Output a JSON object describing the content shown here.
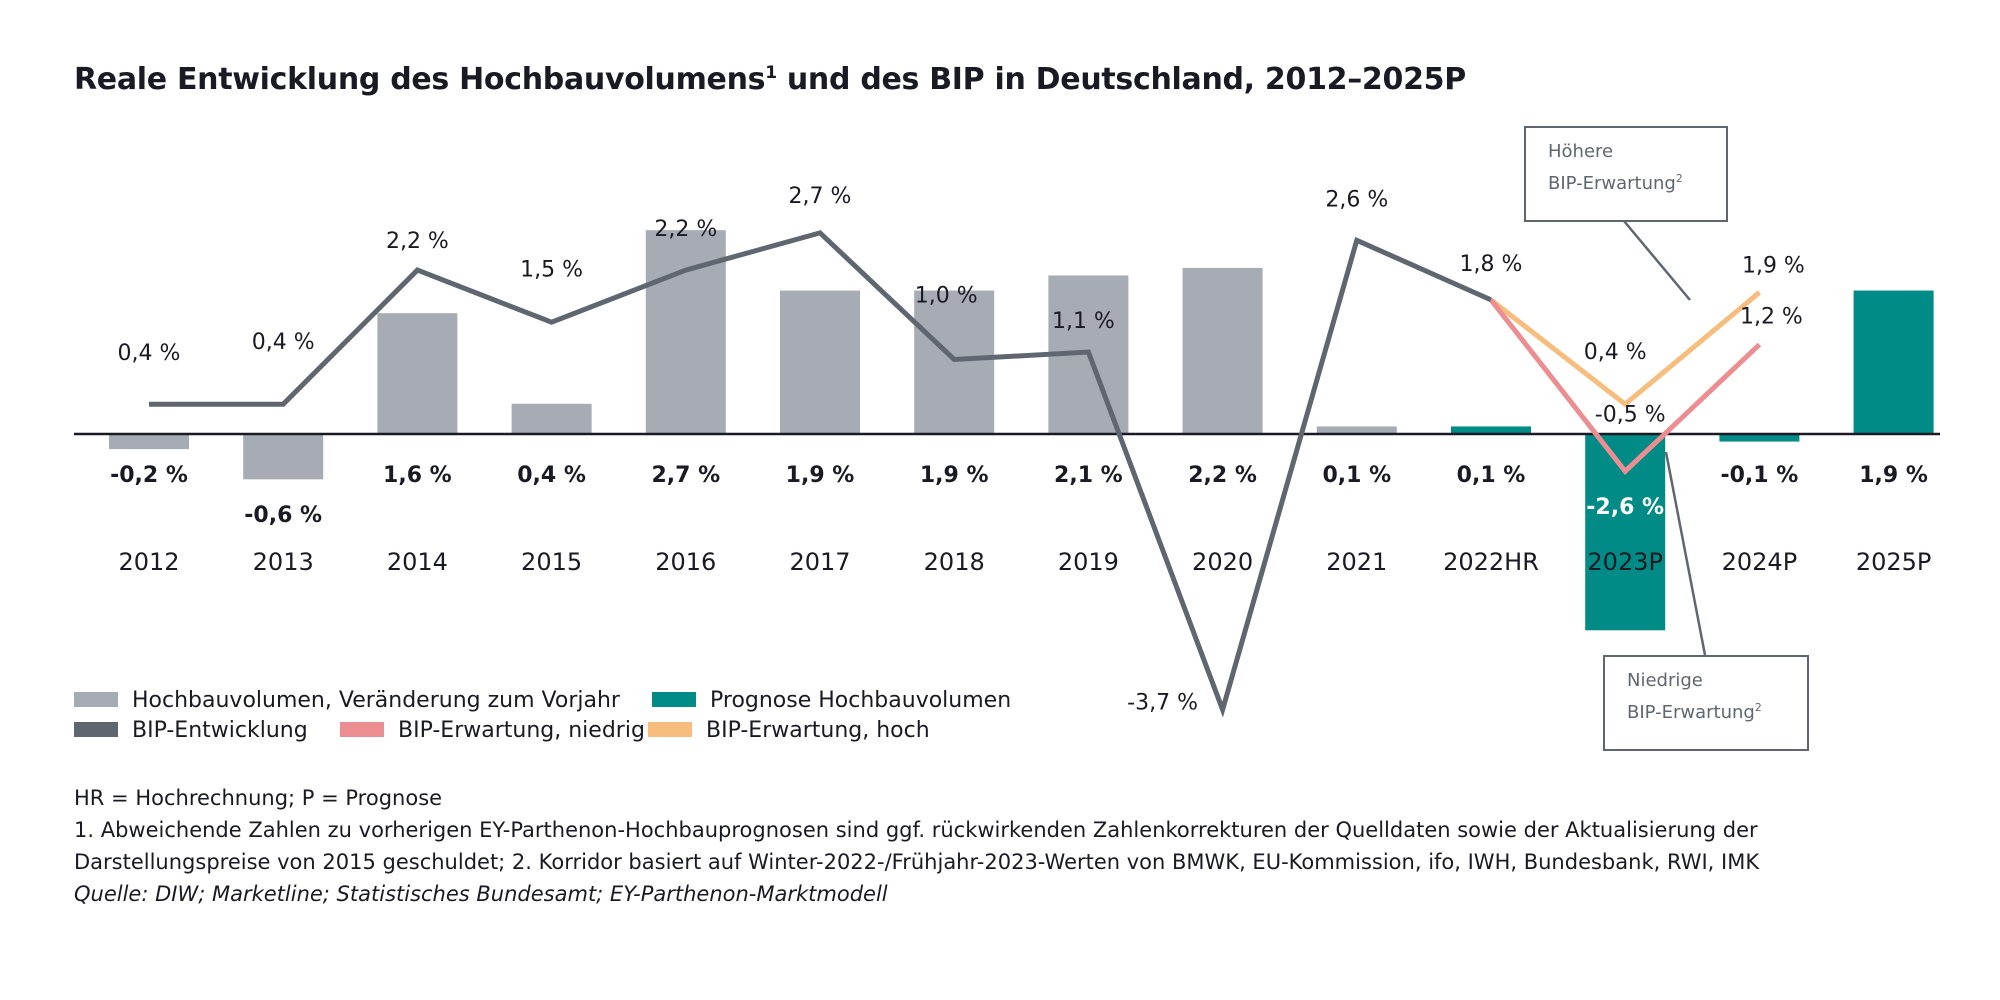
{
  "title": "Reale Entwicklung des Hochbauvolumens",
  "title_sup": "1",
  "title_rest": " und des BIP in Deutschland, 2012–2025P",
  "chart_data": {
    "type": "bar",
    "categories": [
      "2012",
      "2013",
      "2014",
      "2015",
      "2016",
      "2017",
      "2018",
      "2019",
      "2020",
      "2021",
      "2022HR",
      "2023P",
      "2024P",
      "2025P"
    ],
    "bars": {
      "values": [
        -0.2,
        -0.6,
        1.6,
        0.4,
        2.7,
        1.9,
        1.9,
        2.1,
        2.2,
        0.1,
        0.1,
        -2.6,
        -0.1,
        1.9
      ],
      "labels": [
        "-0,2 %",
        "-0,6 %",
        "1,6 %",
        "0,4 %",
        "2,7 %",
        "1,9 %",
        "1,9 %",
        "2,1 %",
        "2,2 %",
        "0,1 %",
        "0,1 %",
        "-2,6 %",
        "-0,1 %",
        "1,9 %"
      ],
      "forecast_from_index": 10
    },
    "lines": {
      "bip": {
        "x_index": [
          0,
          1,
          2,
          3,
          4,
          5,
          6,
          7,
          8,
          9,
          10
        ],
        "values": [
          0.4,
          0.4,
          2.2,
          1.5,
          2.2,
          2.7,
          1.0,
          1.1,
          -3.7,
          2.6,
          1.8
        ],
        "labels": [
          "0,4 %",
          "0,4 %",
          "2,2 %",
          "1,5 %",
          "2,2 %",
          "2,7 %",
          "1,0 %",
          "1,1 %",
          "-3,7 %",
          "2,6 %",
          "1,8 %"
        ]
      },
      "bip_low": {
        "x_index": [
          10,
          11,
          12
        ],
        "values": [
          1.8,
          -0.5,
          1.2
        ],
        "labels": [
          "",
          "-0,5 %",
          "1,2 %"
        ]
      },
      "bip_high": {
        "x_index": [
          10,
          11,
          12
        ],
        "values": [
          1.8,
          0.4,
          1.9
        ],
        "labels": [
          "",
          "0,4 %",
          "1,9 %"
        ]
      }
    },
    "colors": {
      "bar": "#a7abb3",
      "bar_forecast": "#008b86",
      "bip": "#5f6670",
      "bip_low": "#ec8e91",
      "bip_high": "#f6bd7d"
    }
  },
  "legend": {
    "bar": "Hochbauvolumen, Veränderung zum Vorjahr",
    "bar_forecast": "Prognose Hochbauvolumen",
    "bip": "BIP-Entwicklung",
    "bip_low": "BIP-Erwartung, niedrig",
    "bip_high": "BIP-Erwartung, hoch"
  },
  "callouts": {
    "high_line1": "Höhere",
    "high_line2": "BIP-Erwartung",
    "low_line1": "Niedrige",
    "low_line2": "BIP-Erwartung",
    "sup": "2"
  },
  "notes": {
    "abbrev": "HR = Hochrechnung; P = Prognose",
    "note1": "1. Abweichende Zahlen zu vorherigen EY-Parthenon-Hochbauprognosen sind ggf. rückwirkenden Zahlenkorrekturen der Quelldaten sowie der Aktualisierung der",
    "note2": "Darstellungspreise von 2015 geschuldet; 2. Korridor basiert auf Winter-2022-/Frühjahr-2023-Werten von BMWK, EU-Kommission, ifo, IWH, Bundesbank, RWI, IMK",
    "source": "Quelle: DIW; Marketline; Statistisches Bundesamt; EY-Parthenon-Marktmodell"
  }
}
